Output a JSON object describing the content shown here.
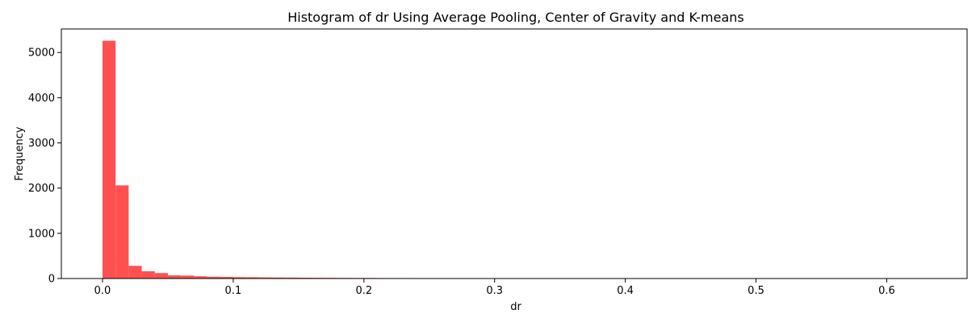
{
  "chart_data": {
    "type": "bar",
    "title": "Histogram of dr Using Average Pooling, Center of Gravity and K-means",
    "xlabel": "dr",
    "ylabel": "Frequency",
    "xlim": [
      -0.0315,
      0.6615
    ],
    "ylim": [
      0,
      5520
    ],
    "x_ticks": [
      0.0,
      0.1,
      0.2,
      0.3,
      0.4,
      0.5,
      0.6
    ],
    "x_tick_labels": [
      "0.0",
      "0.1",
      "0.2",
      "0.3",
      "0.4",
      "0.5",
      "0.6"
    ],
    "y_ticks": [
      0,
      1000,
      2000,
      3000,
      4000,
      5000
    ],
    "y_tick_labels": [
      "0",
      "1000",
      "2000",
      "3000",
      "4000",
      "5000"
    ],
    "bar_color": "#ff5050",
    "bin_width": 0.01,
    "bin_edges_start": 0.0,
    "values": [
      5260,
      2060,
      280,
      160,
      120,
      70,
      65,
      50,
      40,
      35,
      30,
      28,
      25,
      22,
      20,
      18,
      16,
      15,
      14,
      12,
      12,
      10,
      10,
      9,
      8,
      8,
      7,
      7,
      6,
      6,
      5,
      5,
      5,
      4,
      4,
      3,
      3,
      3,
      2,
      2,
      2,
      2,
      2,
      1,
      1,
      1,
      1,
      1,
      1,
      1,
      1,
      1,
      1,
      1,
      1,
      1,
      1,
      1,
      1,
      1,
      1,
      1,
      0
    ]
  }
}
